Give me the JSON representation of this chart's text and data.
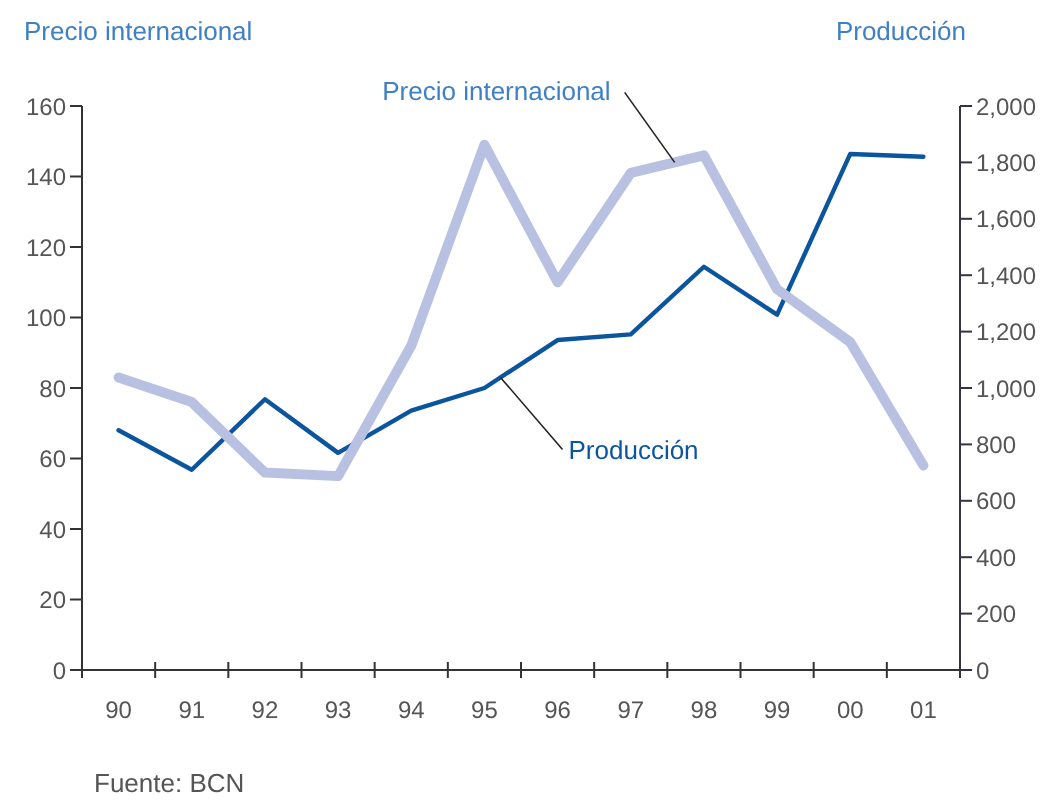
{
  "chart_data": {
    "type": "line",
    "ylabel": "Precio internacional",
    "y2label": "Producción",
    "categories": [
      "90",
      "91",
      "92",
      "93",
      "94",
      "95",
      "96",
      "97",
      "98",
      "99",
      "00",
      "01"
    ],
    "series": [
      {
        "name": "Precio internacional",
        "color": "#b8c1e1",
        "values": [
          83,
          76,
          56,
          55,
          92,
          149,
          110,
          141,
          146,
          108,
          93,
          58
        ]
      },
      {
        "name": "Producción",
        "color": "#0b559f",
        "axis": "y2",
        "values": [
          850,
          710,
          960,
          770,
          920,
          1000,
          1170,
          1190,
          1430,
          1260,
          1830,
          1820
        ]
      }
    ],
    "ylim": [
      0,
      160
    ],
    "yticks": [
      0,
      20,
      40,
      60,
      80,
      100,
      120,
      140,
      160
    ],
    "y2lim": [
      0,
      2000
    ],
    "y2ticks": [
      0,
      200,
      400,
      600,
      800,
      {
        "value": 1000,
        "label": "1,000"
      },
      {
        "value": 1200,
        "label": "1,200"
      },
      {
        "value": 1400,
        "label": "1,400"
      },
      {
        "value": 1600,
        "label": "1,600"
      },
      {
        "value": 1800,
        "label": "1,800"
      },
      {
        "value": 2000,
        "label": "2,000"
      }
    ],
    "annotations": [
      "Fuente: BCN"
    ],
    "grid": false,
    "legend": false,
    "marker": "none"
  }
}
